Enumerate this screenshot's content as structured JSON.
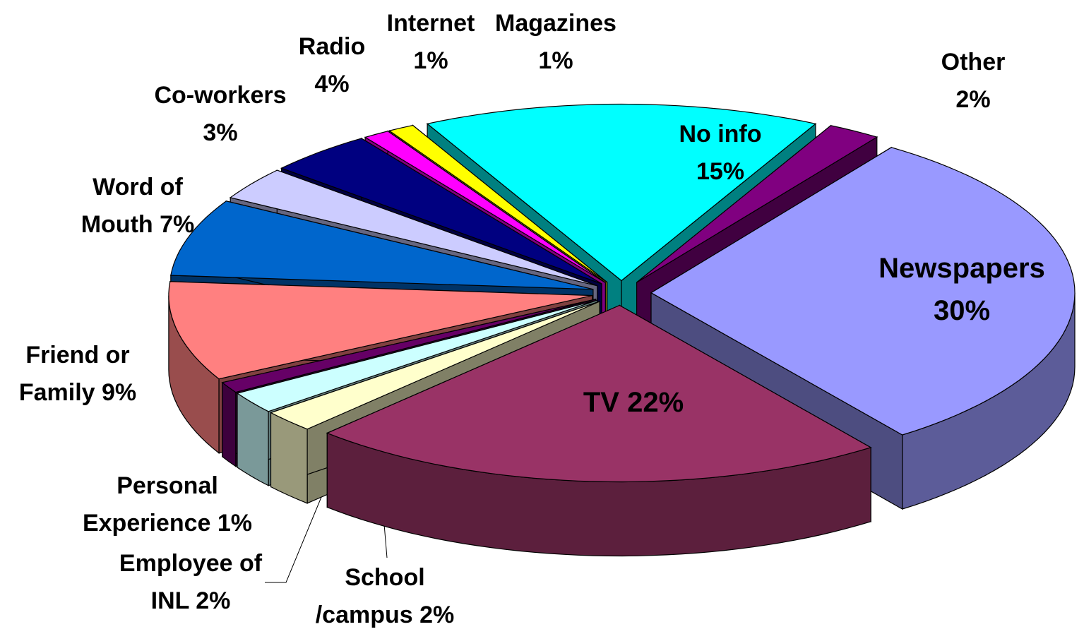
{
  "chart_data": {
    "type": "pie3d",
    "categories": [
      "No info",
      "Other",
      "Newspapers",
      "TV",
      "School /campus",
      "Employee of INL",
      "Personal Experience",
      "Friend or Family",
      "Word of Mouth",
      "Co-workers",
      "Radio",
      "Internet",
      "Magazines"
    ],
    "values": [
      15,
      2,
      30,
      22,
      2,
      2,
      1,
      9,
      7,
      3,
      4,
      1,
      1
    ],
    "value_labels": [
      "15%",
      "2%",
      "30%",
      "22%",
      "2%",
      "2%",
      "1%",
      "9%",
      "7%",
      "3%",
      "4%",
      "1%",
      "1%"
    ],
    "colors": [
      "#00ffff",
      "#800080",
      "#9999ff",
      "#993366",
      "#ffffcc",
      "#ccffff",
      "#660066",
      "#ff8080",
      "#0066cc",
      "#ccccff",
      "#000080",
      "#ff00ff",
      "#ffff00"
    ]
  }
}
